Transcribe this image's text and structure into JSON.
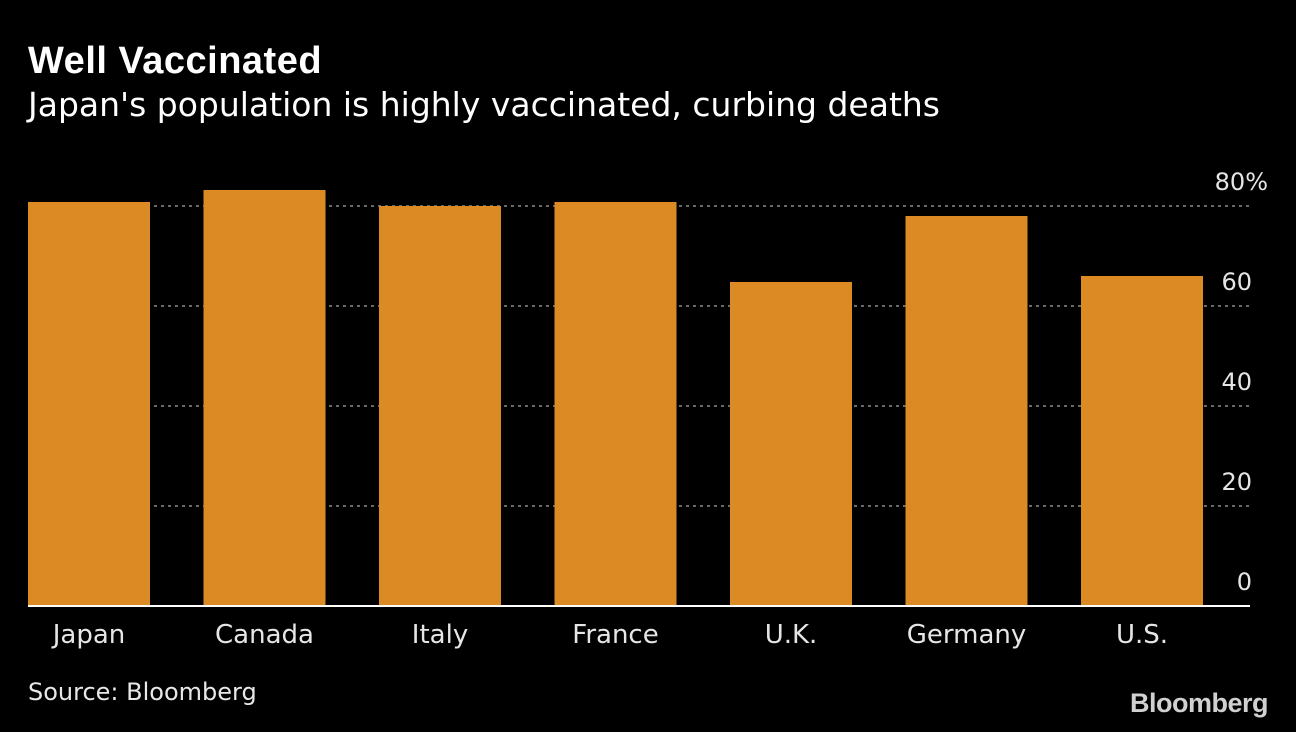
{
  "header": {
    "title": "Well Vaccinated",
    "subtitle": "Japan's population is highly vaccinated, curbing deaths"
  },
  "footer": {
    "source": "Source: Bloomberg",
    "brand": "Bloomberg"
  },
  "chart_data": {
    "type": "bar",
    "title": "Well Vaccinated",
    "subtitle": "Japan's population is highly vaccinated, curbing deaths",
    "categories": [
      "Japan",
      "Canada",
      "Italy",
      "France",
      "U.K.",
      "Germany",
      "U.S."
    ],
    "values": [
      80.8,
      83.2,
      80.0,
      80.8,
      64.8,
      78.0,
      66.0
    ],
    "ylim": [
      0,
      80
    ],
    "yticks": [
      0,
      20,
      40,
      60,
      80
    ],
    "ytick_labels": [
      "0",
      "20",
      "40",
      "60",
      "80%"
    ],
    "yaxis_position": "right",
    "grid": "dotted-horizontal",
    "bar_color": "#dc8a24",
    "background": "#000000"
  }
}
